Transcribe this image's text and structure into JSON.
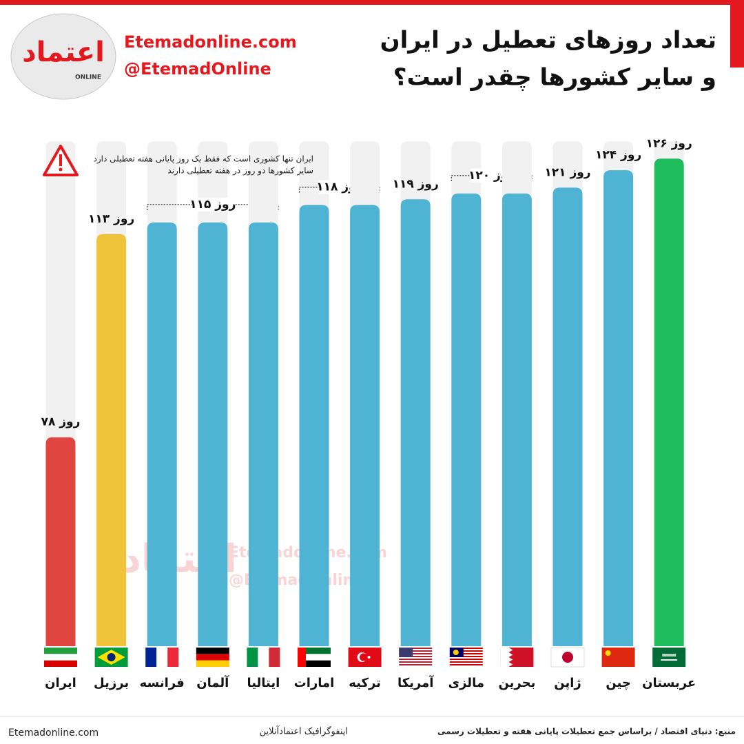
{
  "header": {
    "website": "Etemadonline.com",
    "handle": "@EtemadOnline",
    "logo_text": "اعتماد",
    "logo_sub": "ONLINE"
  },
  "chart_data": {
    "type": "bar",
    "title": [
      "تعداد روزهای تعطیل در ایران",
      "و سایر کشورها چقدر است؟"
    ],
    "note": [
      "ایران تنها کشوری است که فقط یک روز پایانی هفته تعطیلی دارد",
      "سایر کشورها دو روز در هفته تعطیلی دارند"
    ],
    "categories": [
      "ایران",
      "برزیل",
      "فرانسه",
      "آلمان",
      "ایتالیا",
      "امارات",
      "ترکیه",
      "آمریکا",
      "مالزی",
      "بحرین",
      "ژاپن",
      "چین",
      "عربستان"
    ],
    "values": [
      78,
      113,
      115,
      115,
      115,
      118,
      118,
      119,
      120,
      120,
      121,
      124,
      126
    ],
    "value_labels": [
      "۷۸ روز",
      "۱۱۳ روز",
      null,
      "۱۱۵ روز",
      null,
      "۱۱۸ روز",
      null,
      "۱۱۹ روز",
      "۱۲۰ روز",
      null,
      "۱۲۱ روز",
      "۱۲۴ روز",
      "۱۲۶ روز"
    ],
    "colors": [
      "#e0463f",
      "#f0c43a",
      "#4fb3d3",
      "#4fb3d3",
      "#4fb3d3",
      "#4fb3d3",
      "#4fb3d3",
      "#4fb3d3",
      "#4fb3d3",
      "#4fb3d3",
      "#4fb3d3",
      "#4fb3d3",
      "#1fbd5e"
    ],
    "track_color": "#f1f1f1",
    "ylim": [
      42,
      129
    ]
  },
  "footer": {
    "source": "منبع: دنیای اقتصاد / براساس جمع تعطیلات پایانی هفته و تعطیلات رسمی",
    "credit": "اینفوگرافیک اعتمادآنلاین",
    "website": "Etemadonline.com"
  }
}
